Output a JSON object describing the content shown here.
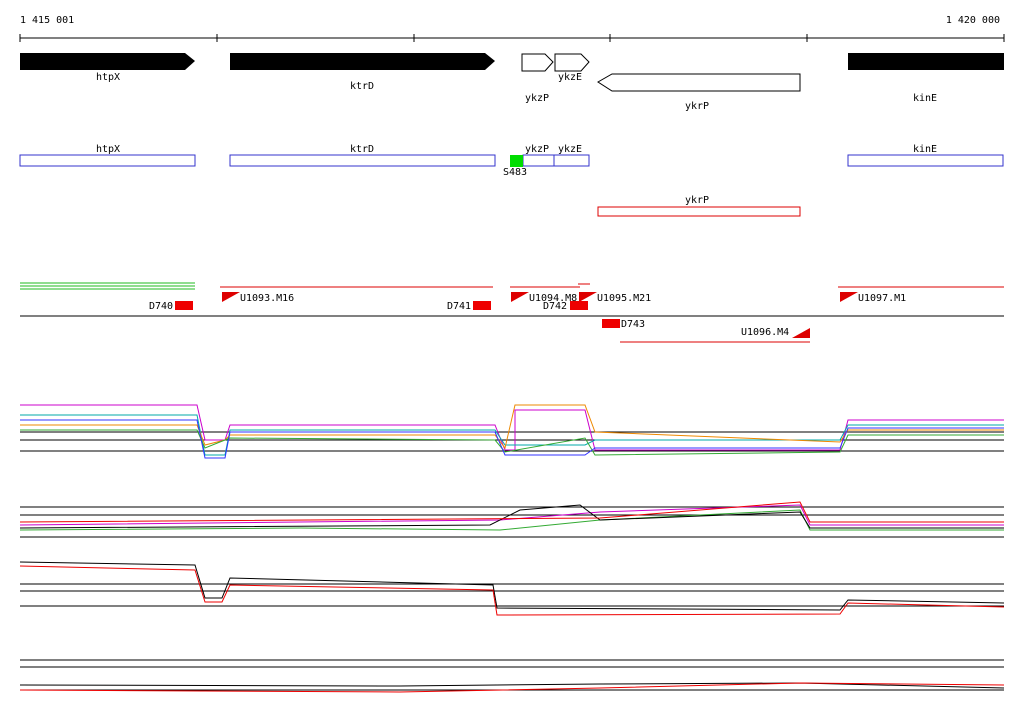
{
  "ruler": {
    "start": "1 415 001",
    "end": "1 420 000"
  },
  "genes": [
    {
      "label": "htpX"
    },
    {
      "label": "ktrD"
    },
    {
      "label": "ykzP"
    },
    {
      "label": "ykzE"
    },
    {
      "label": "ykrP"
    },
    {
      "label": "kinE"
    }
  ],
  "annotations": [
    {
      "label": "htpX"
    },
    {
      "label": "ktrD"
    },
    {
      "label": "ykzP"
    },
    {
      "label": "ykzE"
    },
    {
      "label": "kinE"
    },
    {
      "label": "ykrP"
    },
    {
      "label": "S483"
    }
  ],
  "segments": [
    {
      "label": "D740"
    },
    {
      "label": "U1093.M16"
    },
    {
      "label": "D741"
    },
    {
      "label": "U1094.M8"
    },
    {
      "label": "D742"
    },
    {
      "label": "U1095.M21"
    },
    {
      "label": "D743"
    },
    {
      "label": "U1096.M4"
    },
    {
      "label": "U1097.M1"
    }
  ]
}
